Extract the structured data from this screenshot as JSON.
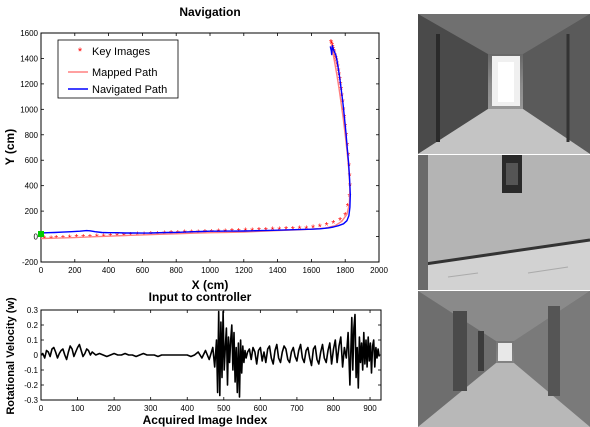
{
  "chart_data": [
    {
      "type": "line",
      "title": "Navigation",
      "xlabel": "X (cm)",
      "ylabel": "Y (cm)",
      "xlim": [
        0,
        2000
      ],
      "ylim": [
        -200,
        1600
      ],
      "xticks": [
        0,
        200,
        400,
        600,
        800,
        1000,
        1200,
        1400,
        1600,
        1800,
        2000
      ],
      "yticks": [
        -200,
        0,
        200,
        400,
        600,
        800,
        1000,
        1200,
        1400,
        1600
      ],
      "grid": false,
      "legend": {
        "placement": "top-left",
        "entries": [
          "Key Images",
          "Mapped Path",
          "Navigated Path"
        ]
      },
      "start_marker": {
        "x": 0,
        "y": 20,
        "color": "#00cc00"
      },
      "series": [
        {
          "name": "Key Images",
          "kind": "markers",
          "marker": "*",
          "color": "#ff0000",
          "x": [
            20,
            60,
            90,
            130,
            170,
            210,
            250,
            290,
            330,
            370,
            410,
            450,
            490,
            530,
            570,
            610,
            650,
            690,
            730,
            770,
            810,
            850,
            890,
            930,
            970,
            1010,
            1050,
            1090,
            1130,
            1170,
            1210,
            1250,
            1290,
            1330,
            1370,
            1410,
            1450,
            1490,
            1530,
            1570,
            1610,
            1650,
            1690,
            1730,
            1770,
            1800,
            1815,
            1825,
            1828,
            1826,
            1822,
            1818,
            1812,
            1806,
            1800,
            1795,
            1790,
            1785,
            1780,
            1776,
            1772,
            1768,
            1764,
            1760,
            1756,
            1752,
            1748,
            1744,
            1740,
            1736,
            1732,
            1728,
            1725,
            1722,
            1719,
            1716
          ],
          "y": [
            -15,
            -15,
            -12,
            -10,
            -8,
            -5,
            -5,
            -3,
            0,
            2,
            5,
            8,
            10,
            12,
            15,
            17,
            20,
            22,
            25,
            27,
            28,
            30,
            32,
            33,
            35,
            37,
            38,
            40,
            42,
            44,
            46,
            48,
            50,
            52,
            54,
            56,
            58,
            60,
            62,
            65,
            70,
            80,
            90,
            105,
            130,
            170,
            240,
            320,
            400,
            480,
            560,
            640,
            720,
            800,
            870,
            940,
            1000,
            1060,
            1110,
            1160,
            1200,
            1240,
            1275,
            1305,
            1335,
            1360,
            1385,
            1405,
            1425,
            1445,
            1460,
            1475,
            1490,
            1505,
            1518,
            1530
          ]
        },
        {
          "name": "Mapped Path",
          "kind": "line",
          "color": "#ff8080",
          "x": [
            0,
            100,
            200,
            300,
            400,
            500,
            600,
            700,
            800,
            900,
            1000,
            1100,
            1200,
            1300,
            1400,
            1500,
            1600,
            1680,
            1740,
            1780,
            1810,
            1825,
            1828,
            1822,
            1812,
            1800,
            1788,
            1776,
            1764,
            1752,
            1740,
            1728,
            1718
          ],
          "y": [
            -15,
            -12,
            -8,
            -2,
            3,
            8,
            13,
            18,
            22,
            26,
            30,
            33,
            36,
            41,
            47,
            52,
            58,
            66,
            85,
            120,
            175,
            260,
            380,
            520,
            660,
            800,
            930,
            1050,
            1160,
            1260,
            1350,
            1440,
            1520
          ]
        },
        {
          "name": "Navigated Path",
          "kind": "line",
          "color": "#0000ff",
          "x": [
            0,
            40,
            80,
            130,
            180,
            230,
            270,
            290,
            320,
            360,
            400,
            450,
            500,
            550,
            600,
            650,
            700,
            750,
            800,
            850,
            900,
            950,
            1000,
            1050,
            1100,
            1150,
            1200,
            1250,
            1300,
            1350,
            1400,
            1450,
            1500,
            1550,
            1600,
            1650,
            1700,
            1730,
            1760,
            1790,
            1810,
            1822,
            1828,
            1830,
            1826,
            1820,
            1812,
            1804,
            1796,
            1788,
            1780,
            1772,
            1765,
            1758,
            1752,
            1746,
            1740,
            1734,
            1728,
            1724,
            1720,
            1718,
            1716,
            1714,
            1712
          ],
          "y": [
            28,
            30,
            32,
            35,
            38,
            42,
            47,
            45,
            38,
            32,
            30,
            30,
            28,
            28,
            27,
            28,
            30,
            32,
            33,
            35,
            38,
            40,
            42,
            42,
            43,
            43,
            44,
            45,
            47,
            48,
            50,
            52,
            54,
            56,
            58,
            61,
            68,
            75,
            85,
            100,
            125,
            165,
            230,
            330,
            450,
            580,
            700,
            820,
            930,
            1030,
            1120,
            1200,
            1270,
            1330,
            1380,
            1420,
            1440,
            1460,
            1480,
            1500,
            1430,
            1460,
            1470,
            1480,
            1495
          ]
        }
      ]
    },
    {
      "type": "line",
      "title": "Input to controller",
      "xlabel": "Acquired Image Index",
      "ylabel": "Rotational Velocity (w)",
      "xlim": [
        0,
        930
      ],
      "ylim": [
        -0.3,
        0.3
      ],
      "xticks": [
        0,
        100,
        200,
        300,
        400,
        500,
        600,
        700,
        800,
        900
      ],
      "yticks": [
        -0.3,
        -0.2,
        -0.1,
        0,
        0.1,
        0.2,
        0.3
      ],
      "grid": false,
      "series": [
        {
          "color": "#000000",
          "x": [
            0,
            5,
            10,
            15,
            20,
            25,
            30,
            35,
            40,
            45,
            50,
            55,
            60,
            65,
            70,
            75,
            80,
            85,
            90,
            95,
            100,
            105,
            110,
            115,
            120,
            125,
            130,
            135,
            140,
            145,
            150,
            160,
            170,
            180,
            190,
            200,
            210,
            220,
            230,
            240,
            250,
            260,
            270,
            280,
            290,
            300,
            310,
            320,
            330,
            340,
            350,
            360,
            370,
            380,
            390,
            400,
            410,
            420,
            430,
            440,
            450,
            460,
            470,
            475,
            480,
            483,
            486,
            489,
            492,
            495,
            498,
            501,
            504,
            507,
            510,
            513,
            516,
            519,
            522,
            525,
            528,
            531,
            534,
            537,
            540,
            543,
            546,
            549,
            552,
            555,
            558,
            561,
            565,
            570,
            575,
            580,
            585,
            590,
            595,
            600,
            605,
            610,
            615,
            620,
            625,
            630,
            635,
            640,
            645,
            650,
            655,
            660,
            665,
            670,
            675,
            680,
            685,
            690,
            695,
            700,
            705,
            710,
            715,
            720,
            725,
            730,
            735,
            740,
            745,
            750,
            755,
            760,
            765,
            770,
            775,
            780,
            785,
            790,
            795,
            800,
            805,
            810,
            815,
            820,
            825,
            830,
            835,
            840,
            845,
            850,
            853,
            856,
            859,
            862,
            865,
            868,
            871,
            874,
            877,
            880,
            883,
            886,
            889,
            892,
            895,
            898,
            901,
            904,
            907,
            910,
            913,
            916,
            919,
            922,
            925
          ],
          "y": [
            0,
            0.01,
            -0.02,
            0.03,
            0.02,
            -0.01,
            0.04,
            0.05,
            0.02,
            -0.02,
            0.01,
            0.03,
            0.04,
            0,
            -0.03,
            0.02,
            0.06,
            0.04,
            -0.01,
            0.02,
            0.05,
            0.07,
            0.03,
            -0.01,
            0.01,
            0.04,
            0.03,
            0,
            0.02,
            0.01,
            0,
            0.01,
            0,
            -0.01,
            0,
            0.01,
            0,
            0,
            0.01,
            0,
            0,
            -0.01,
            0,
            0.01,
            0,
            0,
            0,
            -0.01,
            0,
            0,
            0,
            0,
            0,
            0,
            0,
            0,
            -0.01,
            0,
            0.02,
            -0.02,
            0.03,
            -0.03,
            0.05,
            -0.08,
            0.1,
            -0.25,
            0.29,
            -0.27,
            0.22,
            -0.15,
            0.29,
            -0.1,
            0.05,
            0.18,
            -0.2,
            0.12,
            -0.05,
            0.1,
            0.2,
            -0.1,
            0.15,
            -0.18,
            0.05,
            -0.25,
            0.08,
            -0.28,
            0.1,
            -0.12,
            0.06,
            -0.05,
            0.03,
            -0.02,
            0.02,
            0.04,
            -0.03,
            0.05,
            0.02,
            -0.06,
            0.03,
            0.05,
            -0.04,
            0.02,
            -0.05,
            0.04,
            0.06,
            -0.02,
            -0.06,
            0.03,
            0.07,
            -0.02,
            -0.05,
            0.02,
            0.06,
            0.04,
            -0.03,
            -0.05,
            0.02,
            0.05,
            -0.01,
            -0.04,
            0.03,
            0.07,
            -0.02,
            -0.05,
            0.03,
            0.05,
            -0.02,
            -0.07,
            0.04,
            0.06,
            -0.03,
            -0.06,
            0.02,
            0.07,
            -0.02,
            -0.05,
            0.03,
            0.08,
            -0.06,
            0.04,
            0.1,
            -0.05,
            0.06,
            0.12,
            -0.08,
            0.05,
            -0.02,
            0.15,
            -0.2,
            0.25,
            -0.1,
            0.18,
            0.27,
            -0.15,
            0.05,
            -0.22,
            0.12,
            -0.05,
            0.08,
            -0.1,
            0.15,
            -0.06,
            0.1,
            -0.08,
            0.12,
            -0.04,
            0.08,
            -0.12,
            0.06,
            0.1,
            -0.08,
            0.05,
            -0.02,
            0.04,
            -0.01
          ]
        }
      ]
    }
  ],
  "photos": [
    {
      "name": "key-image-1"
    },
    {
      "name": "key-image-2"
    },
    {
      "name": "key-image-3"
    }
  ]
}
